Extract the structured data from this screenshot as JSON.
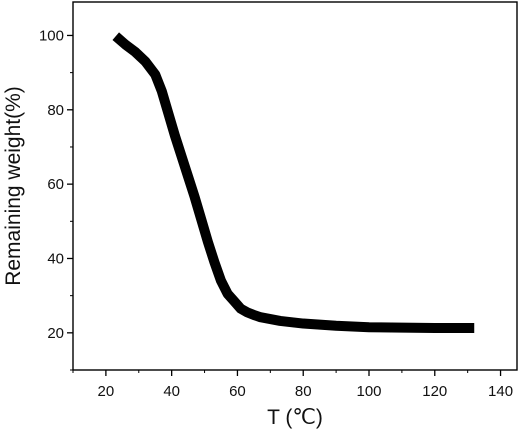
{
  "chart_data": {
    "type": "line",
    "xlabel": "T (℃)",
    "ylabel": "Remaining weight(%)",
    "xlim": [
      10,
      145
    ],
    "ylim": [
      10,
      109
    ],
    "x_ticks": [
      20,
      40,
      60,
      80,
      100,
      120,
      140
    ],
    "y_ticks": [
      20,
      40,
      60,
      80,
      100
    ],
    "x_minor_step": 10,
    "y_minor_step": 10,
    "grid": false,
    "series": [
      {
        "color": "#000000",
        "x": [
          23,
          26,
          29,
          32,
          35,
          37,
          39,
          41,
          43,
          45,
          47,
          49,
          51,
          53,
          55,
          57,
          59,
          61,
          63,
          65,
          67,
          70,
          73,
          76,
          80,
          85,
          90,
          95,
          100,
          110,
          120,
          132
        ],
        "values": [
          99.8,
          97.5,
          95.5,
          93,
          89.5,
          85,
          79,
          73,
          67.5,
          62,
          56.5,
          50.5,
          44.5,
          39,
          34,
          30.5,
          28.5,
          26.5,
          25.5,
          24.8,
          24.2,
          23.7,
          23.2,
          22.9,
          22.5,
          22.2,
          21.9,
          21.7,
          21.5,
          21.4,
          21.3,
          21.3
        ]
      }
    ]
  }
}
